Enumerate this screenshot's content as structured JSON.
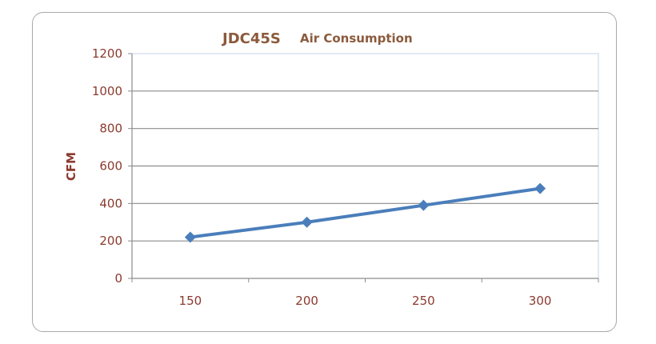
{
  "chart_data": {
    "type": "line",
    "title": "JDC45S",
    "subtitle": "Air Consumption",
    "xlabel": "",
    "ylabel": "CFM",
    "categories": [
      "150",
      "200",
      "250",
      "300"
    ],
    "series": [
      {
        "values": [
          220,
          300,
          390,
          480
        ],
        "color": "#4a7ebb",
        "marker": "diamond"
      }
    ],
    "ylim": [
      0,
      1200
    ],
    "yticks": [
      0,
      200,
      400,
      600,
      800,
      1000,
      1200
    ],
    "grid": "horizontal",
    "legend": "none"
  }
}
